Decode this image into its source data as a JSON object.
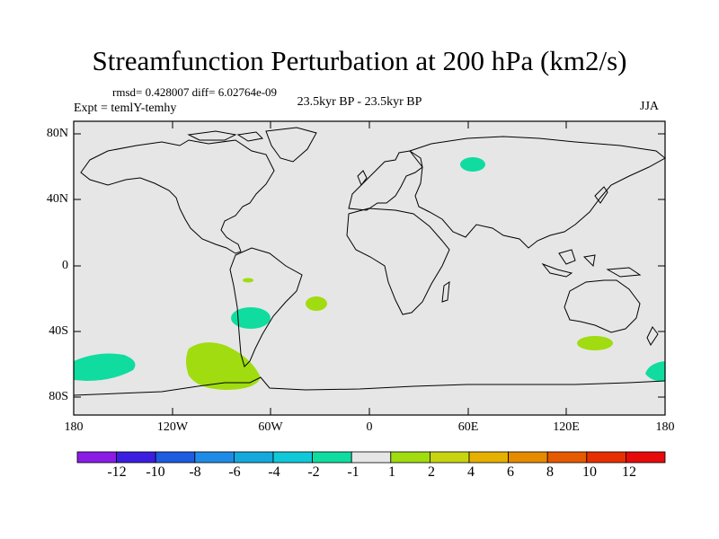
{
  "plot": {
    "title": "Streamfunction Perturbation at 200 hPa (km2/s)",
    "stats": "rmsd= 0.428007 diff= 6.02764e-09",
    "experiment": "Expt = temlY-temhy",
    "period": "23.5kyr BP - 23.5kyr BP",
    "season": "JJA"
  },
  "axes": {
    "lat_labels": [
      "80N",
      "40N",
      "0",
      "40S",
      "80S"
    ],
    "lon_labels": [
      "180",
      "120W",
      "60W",
      "0",
      "60E",
      "120E",
      "180"
    ]
  },
  "colorbar": {
    "labels": [
      "-12",
      "-10",
      "-8",
      "-6",
      "-4",
      "-2",
      "-1",
      "1",
      "2",
      "4",
      "6",
      "8",
      "10",
      "12"
    ],
    "colors": [
      "#8a1ce6",
      "#3c1ee0",
      "#1e5ce0",
      "#1e8ce6",
      "#14a8dc",
      "#10c8d8",
      "#10dca0",
      "#e6e6e6",
      "#a0dc10",
      "#c8d410",
      "#e6b000",
      "#e68a00",
      "#e65a00",
      "#e63000",
      "#e60a0a"
    ]
  },
  "colors": {
    "ocean": "#e6e6e6",
    "negative_anomaly": "#10dca0",
    "positive_anomaly": "#a0dc10"
  }
}
